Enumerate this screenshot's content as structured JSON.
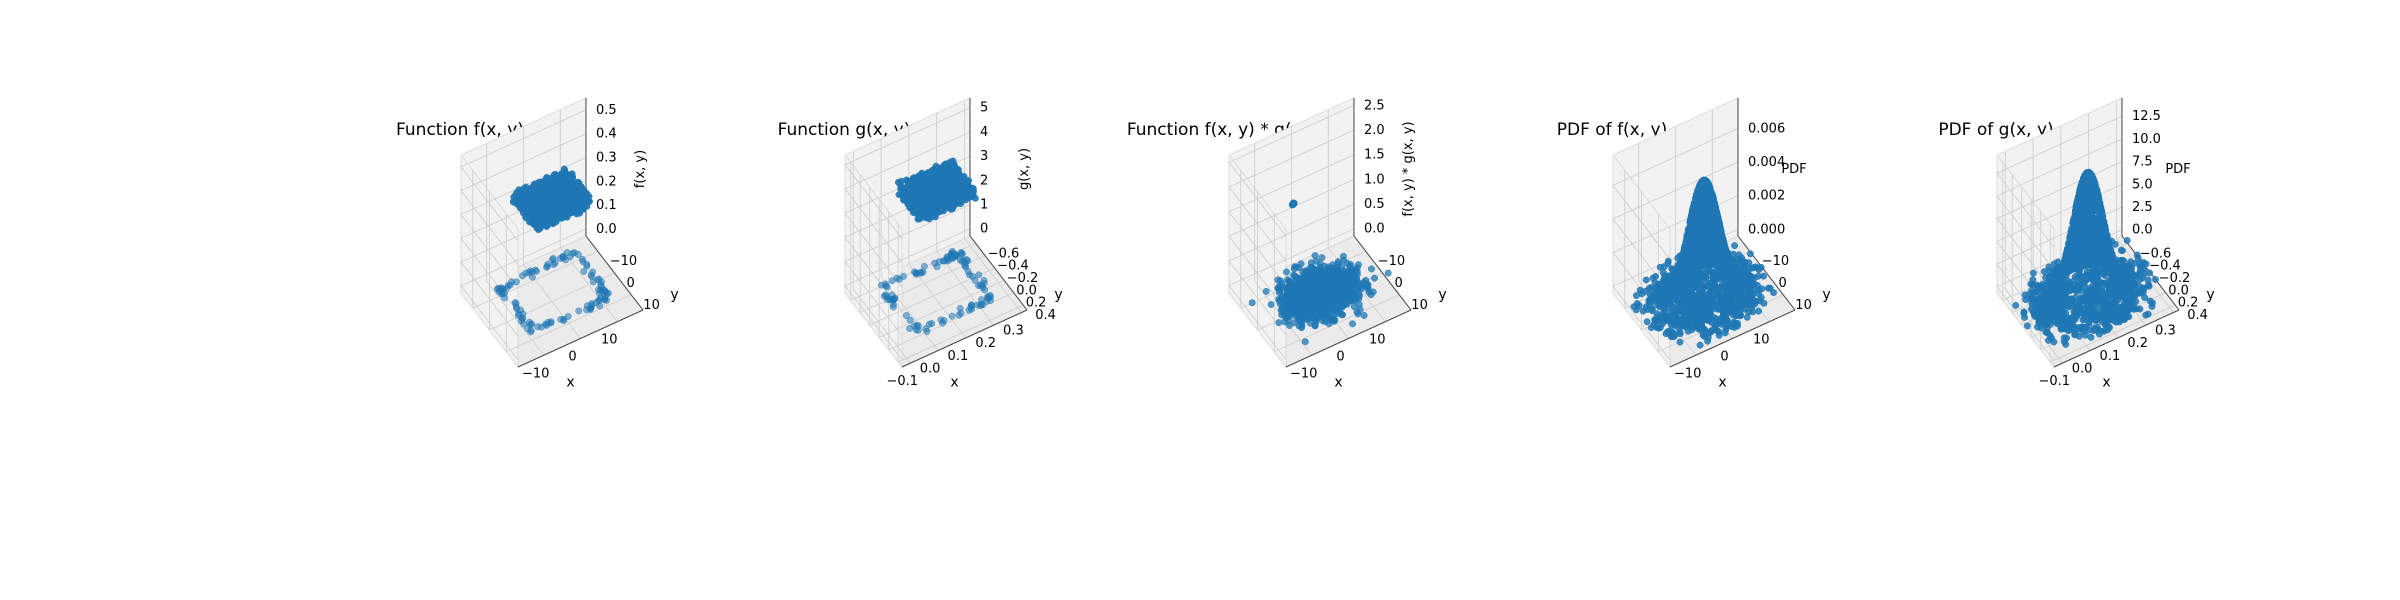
{
  "chart_data": [
    {
      "type": "scatter",
      "title": "Function f(x, y)",
      "xlabel": "x",
      "ylabel": "y",
      "zlabel": "f(x, y)",
      "xlim": [
        -17,
        17
      ],
      "ylim": [
        -17,
        17
      ],
      "zlim": [
        -0.03,
        0.55
      ],
      "xticks": [
        -10,
        0,
        10
      ],
      "yticks": [
        -10,
        0,
        10
      ],
      "zticks": [
        0.0,
        0.1,
        0.2,
        0.3,
        0.4,
        0.5
      ],
      "xtick_labels": [
        "−10",
        "0",
        "10"
      ],
      "ytick_labels": [
        "−10",
        "0",
        "10"
      ],
      "ztick_labels": [
        "0.0",
        "0.1",
        "0.2",
        "0.3",
        "0.4",
        "0.5"
      ],
      "grid": true,
      "series": [
        {
          "color": "#1f77b4",
          "description_values": {
            "dense_cluster_level": 0.4,
            "ring_level": 0.0
          }
        }
      ]
    },
    {
      "type": "scatter",
      "title": "Function g(x, y)",
      "xlabel": "x",
      "ylabel": "y",
      "zlabel": "g(x, y)",
      "xlim": [
        -0.13,
        0.32
      ],
      "ylim": [
        -0.72,
        0.48
      ],
      "zlim": [
        -0.3,
        5.4
      ],
      "xticks": [
        -0.1,
        0.0,
        0.1,
        0.2,
        0.3
      ],
      "yticks": [
        -0.6,
        -0.4,
        -0.2,
        0.0,
        0.2,
        0.4
      ],
      "zticks": [
        0,
        1,
        2,
        3,
        4,
        5
      ],
      "xtick_labels": [
        "−0.1",
        "0.0",
        "0.1",
        "0.2",
        "0.3"
      ],
      "ytick_labels": [
        "−0.6",
        "−0.4",
        "−0.2",
        "0.0",
        "0.2",
        "0.4"
      ],
      "ztick_labels": [
        "0",
        "1",
        "2",
        "3",
        "4",
        "5"
      ],
      "grid": true,
      "series": [
        {
          "color": "#1f77b4",
          "description_values": {
            "dense_cluster_level": 4.3,
            "ring_level": 0.0
          }
        }
      ]
    },
    {
      "type": "scatter",
      "title": "Function f(x, y) * g(x, y)",
      "xlabel": "x",
      "ylabel": "y",
      "zlabel": "f(x, y) * g(x, y)",
      "xlim": [
        -17,
        17
      ],
      "ylim": [
        -17,
        17
      ],
      "zlim": [
        -0.15,
        2.65
      ],
      "xticks": [
        -10,
        0,
        10
      ],
      "yticks": [
        -10,
        0,
        10
      ],
      "zticks": [
        0.0,
        0.5,
        1.0,
        1.5,
        2.0,
        2.5
      ],
      "xtick_labels": [
        "−10",
        "0",
        "10"
      ],
      "ytick_labels": [
        "−10",
        "0",
        "10"
      ],
      "ztick_labels": [
        "0.0",
        "0.5",
        "1.0",
        "1.5",
        "2.0",
        "2.5"
      ],
      "grid": true,
      "series": [
        {
          "color": "#1f77b4",
          "description_values": {
            "main_cluster_level": 0.0,
            "outlier_level": 2.1
          }
        }
      ]
    },
    {
      "type": "scatter",
      "title": "PDF of f(x, y)",
      "xlabel": "x",
      "ylabel": "y",
      "zlabel": "PDF",
      "xlim": [
        -17,
        17
      ],
      "ylim": [
        -17,
        17
      ],
      "zlim": [
        -0.0004,
        0.0078
      ],
      "xticks": [
        -10,
        0,
        10
      ],
      "yticks": [
        -10,
        0,
        10
      ],
      "zticks": [
        0.0,
        0.002,
        0.004,
        0.006
      ],
      "xtick_labels": [
        "−10",
        "0",
        "10"
      ],
      "ytick_labels": [
        "−10",
        "0",
        "10"
      ],
      "ztick_labels": [
        "0.000",
        "0.002",
        "0.004",
        "0.006"
      ],
      "grid": true,
      "series": [
        {
          "color": "#1f77b4",
          "description_values": {
            "peak": 0.0068
          }
        }
      ]
    },
    {
      "type": "scatter",
      "title": "PDF of g(x, y)",
      "xlabel": "x",
      "ylabel": "y",
      "zlabel": "PDF",
      "xlim": [
        -0.13,
        0.32
      ],
      "ylim": [
        -0.72,
        0.48
      ],
      "zlim": [
        -0.7,
        14.5
      ],
      "xticks": [
        -0.1,
        0.0,
        0.1,
        0.2,
        0.3
      ],
      "yticks": [
        -0.6,
        -0.4,
        -0.2,
        0.0,
        0.2,
        0.4
      ],
      "zticks": [
        0.0,
        2.5,
        5.0,
        7.5,
        10.0,
        12.5
      ],
      "xtick_labels": [
        "−0.1",
        "0.0",
        "0.1",
        "0.2",
        "0.3"
      ],
      "ytick_labels": [
        "−0.6",
        "−0.4",
        "−0.2",
        "0.0",
        "0.2",
        "0.4"
      ],
      "ztick_labels": [
        "0.0",
        "2.5",
        "5.0",
        "7.5",
        "10.0",
        "12.5"
      ],
      "grid": true,
      "series": [
        {
          "color": "#1f77b4",
          "description_values": {
            "peak": 13.5
          }
        }
      ]
    }
  ]
}
